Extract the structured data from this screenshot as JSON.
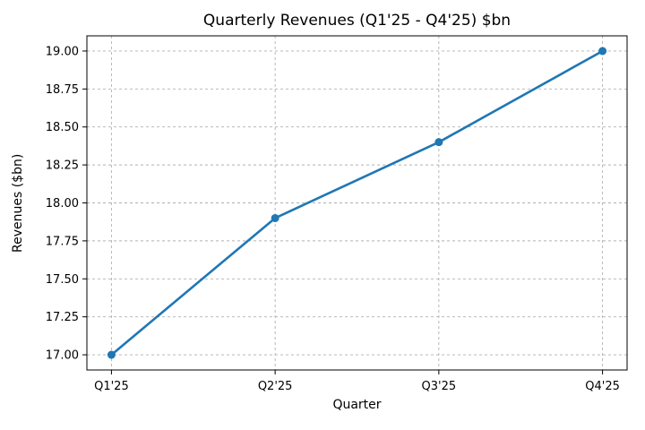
{
  "chart_data": {
    "type": "line",
    "title": "Quarterly Revenues (Q1'25 - Q4'25) $bn",
    "xlabel": "Quarter",
    "ylabel": "Revenues ($bn)",
    "categories": [
      "Q1'25",
      "Q2'25",
      "Q3'25",
      "Q4'25"
    ],
    "series": [
      {
        "name": "Revenues",
        "values": [
          17.0,
          17.9,
          18.4,
          19.0
        ],
        "color": "#1f77b4"
      }
    ],
    "y_ticks": [
      17.0,
      17.25,
      17.5,
      17.75,
      18.0,
      18.25,
      18.5,
      18.75,
      19.0
    ],
    "y_tick_labels": [
      "17.00",
      "17.25",
      "17.50",
      "17.75",
      "18.00",
      "18.25",
      "18.50",
      "18.75",
      "19.00"
    ],
    "ylim": [
      16.9,
      19.1
    ],
    "grid": true,
    "grid_style": "dashed",
    "marker": "circle",
    "legend_position": "none"
  },
  "colors": {
    "line": "#1f77b4",
    "grid": "#b0b0b0",
    "axis": "#000000",
    "background": "#ffffff",
    "text": "#000000"
  }
}
